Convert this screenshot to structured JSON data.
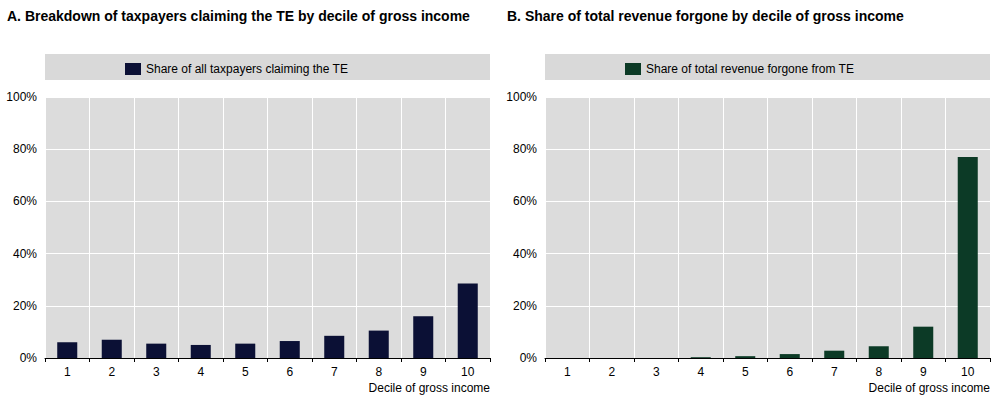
{
  "chart_data": [
    {
      "type": "bar",
      "title": "A. Breakdown of taxpayers claiming the TE by decile of gross income",
      "categories": [
        "1",
        "2",
        "3",
        "4",
        "5",
        "6",
        "7",
        "8",
        "9",
        "10"
      ],
      "series": [
        {
          "name": "Share of all taxpayers claiming the TE",
          "color": "#0b1035",
          "values": [
            6,
            7,
            5.5,
            5,
            5.5,
            6.5,
            8.5,
            10.5,
            16,
            28.5
          ]
        }
      ],
      "x_label": "Decile of gross income",
      "ylim": [
        0,
        100
      ],
      "yticks": [
        {
          "value": 0,
          "label": "0%"
        },
        {
          "value": 20,
          "label": "20%"
        },
        {
          "value": 40,
          "label": "40%"
        },
        {
          "value": 60,
          "label": "60%"
        },
        {
          "value": 80,
          "label": "80%"
        },
        {
          "value": 100,
          "label": "100%"
        }
      ],
      "grid": true,
      "legend": "top"
    },
    {
      "type": "bar",
      "title": "B. Share of total revenue forgone by decile of gross income",
      "categories": [
        "1",
        "2",
        "3",
        "4",
        "5",
        "6",
        "7",
        "8",
        "9",
        "10"
      ],
      "series": [
        {
          "name": "Share of total revenue forgone from TE",
          "color": "#0c3a26",
          "values": [
            0,
            0,
            0,
            0.3,
            0.7,
            1.5,
            2.8,
            4.5,
            12,
            77
          ]
        }
      ],
      "x_label": "Decile of gross income",
      "ylim": [
        0,
        100
      ],
      "yticks": [
        {
          "value": 0,
          "label": "0%"
        },
        {
          "value": 20,
          "label": "20%"
        },
        {
          "value": 40,
          "label": "40%"
        },
        {
          "value": 60,
          "label": "60%"
        },
        {
          "value": 80,
          "label": "80%"
        },
        {
          "value": 100,
          "label": "100%"
        }
      ],
      "grid": true,
      "legend": "top"
    }
  ]
}
